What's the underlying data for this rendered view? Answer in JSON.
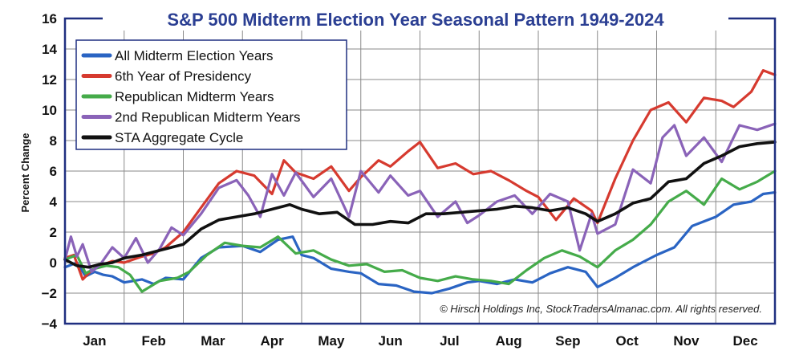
{
  "chart_data": {
    "type": "line",
    "title": "S&P 500 Midterm Election Year Seasonal Pattern 1949-2024",
    "ylabel": "Percent Change",
    "xlabel": "",
    "ylim": [
      -4,
      16
    ],
    "yticks": [
      -4,
      -2,
      0,
      2,
      4,
      6,
      8,
      10,
      12,
      14,
      16
    ],
    "months": [
      "Jan",
      "Feb",
      "Mar",
      "Apr",
      "May",
      "Jun",
      "Jul",
      "Aug",
      "Sep",
      "Oct",
      "Nov",
      "Dec"
    ],
    "grid": true,
    "legend_position": "top-left",
    "copyright": "© Hirsch Holdings Inc, StockTradersAlmanac.com. All rights reserved.",
    "colors": {
      "title": "#2b3f93",
      "grid": "#8a8a8a",
      "frame": "#1f2f80"
    },
    "series": [
      {
        "name": "All Midterm Election Years",
        "color": "#2a64c3",
        "x": [
          0,
          0.2,
          0.35,
          0.5,
          0.65,
          0.8,
          1.0,
          1.3,
          1.5,
          1.7,
          2.0,
          2.3,
          2.6,
          3.0,
          3.3,
          3.6,
          3.85,
          4.0,
          4.2,
          4.5,
          4.8,
          5.0,
          5.3,
          5.6,
          5.9,
          6.2,
          6.5,
          6.8,
          7.0,
          7.3,
          7.6,
          7.9,
          8.2,
          8.5,
          8.8,
          9.0,
          9.3,
          9.6,
          10.0,
          10.3,
          10.6,
          11.0,
          11.3,
          11.6,
          11.8,
          12.0
        ],
        "y": [
          -0.3,
          0.0,
          -0.9,
          -0.6,
          -0.8,
          -0.9,
          -1.3,
          -1.1,
          -1.4,
          -1.0,
          -1.1,
          0.3,
          1.0,
          1.1,
          0.7,
          1.5,
          1.7,
          0.5,
          0.3,
          -0.4,
          -0.6,
          -0.7,
          -1.4,
          -1.5,
          -1.9,
          -2.0,
          -1.7,
          -1.3,
          -1.2,
          -1.4,
          -1.1,
          -1.3,
          -0.7,
          -0.3,
          -0.6,
          -1.6,
          -1.0,
          -0.3,
          0.5,
          1.0,
          2.4,
          3.0,
          3.8,
          4.0,
          4.5,
          4.6
        ]
      },
      {
        "name": "6th Year of Presidency",
        "color": "#d63a2f",
        "x": [
          0,
          0.15,
          0.3,
          0.45,
          0.6,
          0.8,
          1.0,
          1.3,
          1.5,
          1.7,
          2.0,
          2.3,
          2.6,
          2.9,
          3.2,
          3.5,
          3.7,
          3.9,
          4.2,
          4.5,
          4.8,
          5.0,
          5.3,
          5.5,
          5.8,
          6.0,
          6.3,
          6.6,
          6.9,
          7.2,
          7.5,
          7.8,
          8.0,
          8.3,
          8.6,
          8.9,
          9.0,
          9.3,
          9.6,
          9.9,
          10.2,
          10.5,
          10.8,
          11.1,
          11.3,
          11.6,
          11.8,
          12.0
        ],
        "y": [
          0.3,
          0.5,
          -1.1,
          -0.5,
          -0.2,
          0.1,
          0.0,
          0.4,
          0.6,
          1.0,
          2.0,
          3.6,
          5.2,
          6.0,
          5.7,
          4.5,
          6.7,
          5.9,
          5.5,
          6.3,
          4.7,
          5.6,
          6.7,
          6.3,
          7.3,
          7.9,
          6.2,
          6.5,
          5.8,
          6.0,
          5.4,
          4.7,
          4.3,
          2.8,
          4.2,
          3.4,
          2.6,
          5.5,
          8.0,
          10.0,
          10.5,
          9.2,
          10.8,
          10.6,
          10.2,
          11.2,
          12.6,
          12.3
        ]
      },
      {
        "name": "Republican Midterm Years",
        "color": "#45ab4a",
        "x": [
          0,
          0.2,
          0.35,
          0.5,
          0.7,
          0.9,
          1.1,
          1.3,
          1.6,
          1.9,
          2.1,
          2.4,
          2.7,
          3.0,
          3.3,
          3.6,
          3.9,
          4.2,
          4.5,
          4.8,
          5.1,
          5.4,
          5.7,
          6.0,
          6.3,
          6.6,
          6.9,
          7.2,
          7.5,
          7.8,
          8.1,
          8.4,
          8.7,
          9.0,
          9.3,
          9.6,
          9.9,
          10.2,
          10.5,
          10.8,
          11.1,
          11.4,
          11.7,
          12.0
        ],
        "y": [
          0.2,
          0.5,
          -0.7,
          -0.4,
          -0.2,
          -0.3,
          -0.8,
          -1.9,
          -1.2,
          -1.0,
          -0.6,
          0.5,
          1.3,
          1.1,
          1.0,
          1.7,
          0.6,
          0.8,
          0.2,
          -0.2,
          -0.1,
          -0.6,
          -0.5,
          -1.0,
          -1.2,
          -0.9,
          -1.1,
          -1.2,
          -1.4,
          -0.5,
          0.3,
          0.8,
          0.4,
          -0.3,
          0.8,
          1.5,
          2.5,
          4.0,
          4.7,
          3.8,
          5.5,
          4.8,
          5.3,
          6.0
        ]
      },
      {
        "name": "2nd Republican Midterm Years",
        "color": "#8a63b8",
        "x": [
          0,
          0.1,
          0.2,
          0.3,
          0.45,
          0.6,
          0.8,
          1.0,
          1.2,
          1.4,
          1.6,
          1.8,
          2.0,
          2.3,
          2.6,
          2.9,
          3.1,
          3.3,
          3.5,
          3.7,
          3.9,
          4.2,
          4.5,
          4.8,
          5.0,
          5.3,
          5.5,
          5.8,
          6.0,
          6.3,
          6.6,
          6.8,
          7.0,
          7.3,
          7.6,
          7.9,
          8.2,
          8.5,
          8.7,
          8.9,
          9.0,
          9.3,
          9.6,
          9.9,
          10.1,
          10.3,
          10.5,
          10.8,
          11.1,
          11.4,
          11.7,
          12.0
        ],
        "y": [
          0.2,
          1.7,
          0.4,
          1.2,
          -0.6,
          -0.1,
          1.0,
          0.3,
          1.6,
          0.0,
          0.9,
          2.3,
          1.8,
          3.2,
          4.9,
          5.4,
          4.4,
          3.0,
          5.8,
          4.4,
          5.9,
          4.3,
          5.5,
          3.0,
          6.0,
          4.6,
          5.7,
          4.4,
          4.7,
          3.0,
          4.0,
          2.6,
          3.1,
          4.0,
          4.4,
          3.2,
          4.5,
          4.0,
          0.8,
          3.2,
          1.9,
          2.5,
          6.1,
          5.2,
          8.2,
          9.0,
          7.0,
          8.2,
          6.6,
          9.0,
          8.7,
          9.1
        ]
      },
      {
        "name": "STA Aggregate Cycle",
        "color": "#111111",
        "x": [
          0,
          0.2,
          0.4,
          0.6,
          0.8,
          1.0,
          1.3,
          1.6,
          2.0,
          2.3,
          2.6,
          2.9,
          3.2,
          3.5,
          3.8,
          4.0,
          4.3,
          4.6,
          4.9,
          5.2,
          5.5,
          5.8,
          6.1,
          6.4,
          6.7,
          7.0,
          7.3,
          7.6,
          7.9,
          8.2,
          8.5,
          8.8,
          9.0,
          9.3,
          9.6,
          9.9,
          10.2,
          10.5,
          10.8,
          11.1,
          11.4,
          11.7,
          12.0
        ],
        "y": [
          0.2,
          -0.2,
          -0.3,
          -0.1,
          0.0,
          0.3,
          0.5,
          0.8,
          1.2,
          2.2,
          2.8,
          3.0,
          3.2,
          3.5,
          3.8,
          3.5,
          3.2,
          3.3,
          2.5,
          2.5,
          2.7,
          2.6,
          3.2,
          3.2,
          3.3,
          3.4,
          3.5,
          3.7,
          3.6,
          3.4,
          3.6,
          3.2,
          2.7,
          3.2,
          3.9,
          4.2,
          5.3,
          5.5,
          6.5,
          7.0,
          7.6,
          7.8,
          7.9
        ]
      }
    ]
  }
}
